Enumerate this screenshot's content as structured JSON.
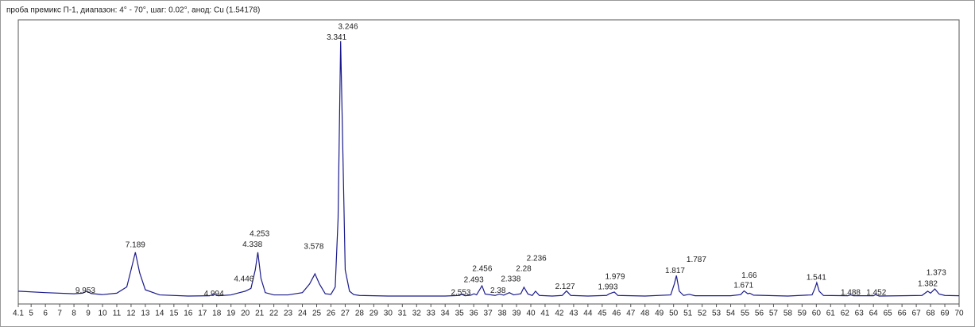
{
  "chart_data": {
    "type": "line",
    "title": "проба  премикс П-1, диапазон: 4° - 70°, шаг: 0.02°, анод: Cu (1.54178)",
    "color": "#1a1a8c",
    "xlim": [
      4.1,
      70
    ],
    "ylim": [
      0,
      1000
    ],
    "xticks": [
      4.1,
      5,
      6,
      7,
      8,
      9,
      10,
      11,
      12,
      13,
      14,
      15,
      16,
      17,
      18,
      19,
      20,
      21,
      22,
      23,
      24,
      25,
      26,
      27,
      28,
      29,
      30,
      31,
      32,
      33,
      34,
      35,
      36,
      37,
      38,
      39,
      40,
      41,
      42,
      43,
      44,
      45,
      46,
      47,
      48,
      49,
      50,
      51,
      52,
      53,
      54,
      55,
      56,
      57,
      58,
      59,
      60,
      61,
      62,
      63,
      64,
      65,
      66,
      67,
      68,
      69,
      70
    ],
    "x": [
      4.1,
      6,
      8,
      8.6,
      8.9,
      9.2,
      10,
      11,
      11.7,
      12.0,
      12.3,
      12.6,
      13,
      14,
      16,
      17.5,
      17.8,
      18.1,
      19,
      19.6,
      20,
      20.4,
      20.7,
      20.88,
      21.1,
      21.4,
      22,
      23,
      24,
      24.5,
      24.88,
      25.2,
      25.6,
      26,
      26.3,
      26.5,
      26.68,
      26.85,
      27.0,
      27.3,
      27.6,
      28,
      30,
      32,
      34,
      35,
      35.15,
      35.4,
      35.8,
      36.02,
      36.2,
      36.58,
      36.8,
      37.5,
      37.8,
      38.1,
      38.5,
      38.8,
      39.3,
      39.52,
      39.8,
      40.1,
      40.33,
      40.6,
      41.5,
      42.2,
      42.5,
      42.8,
      44,
      45.3,
      45.51,
      45.85,
      46.1,
      48,
      49.8,
      50.05,
      50.2,
      50.4,
      50.7,
      51.1,
      51.5,
      54,
      54.7,
      54.94,
      55.2,
      55.33,
      55.6,
      58,
      59.7,
      59.9,
      60.03,
      60.2,
      60.5,
      62.2,
      62.4,
      62.6,
      64.0,
      64.14,
      64.4,
      67.4,
      67.8,
      68.0,
      68.3,
      68.6,
      69,
      70
    ],
    "values": [
      45,
      40,
      36,
      38,
      45,
      37,
      33,
      38,
      60,
      120,
      182,
      110,
      50,
      32,
      28,
      29,
      35,
      29,
      32,
      40,
      45,
      55,
      120,
      182,
      90,
      40,
      32,
      32,
      40,
      70,
      106,
      70,
      36,
      34,
      60,
      300,
      925,
      500,
      120,
      45,
      33,
      30,
      28,
      28,
      28,
      30,
      34,
      29,
      31,
      36,
      32,
      64,
      35,
      30,
      35,
      31,
      40,
      32,
      36,
      59,
      35,
      30,
      45,
      30,
      28,
      30,
      46,
      30,
      28,
      30,
      36,
      42,
      30,
      28,
      32,
      70,
      100,
      45,
      30,
      34,
      29,
      29,
      33,
      46,
      36,
      38,
      31,
      28,
      32,
      55,
      75,
      45,
      30,
      29,
      32,
      29,
      29,
      33,
      28,
      30,
      45,
      38,
      53,
      35,
      30,
      29
    ],
    "annotations": [
      {
        "text": "9.953",
        "x": 8.8,
        "y": 47
      },
      {
        "text": "7.189",
        "x": 12.3,
        "y": 207
      },
      {
        "text": "4.994",
        "x": 17.8,
        "y": 36
      },
      {
        "text": "4.446",
        "x": 19.9,
        "y": 87
      },
      {
        "text": "4.338",
        "x": 20.5,
        "y": 209
      },
      {
        "text": "4.253",
        "x": 21.0,
        "y": 246
      },
      {
        "text": "3.578",
        "x": 24.8,
        "y": 201
      },
      {
        "text": "3.341",
        "x": 26.4,
        "y": 938
      },
      {
        "text": "3.246",
        "x": 27.2,
        "y": 975
      },
      {
        "text": "2.553",
        "x": 35.1,
        "y": 39
      },
      {
        "text": "2.493",
        "x": 36.0,
        "y": 84
      },
      {
        "text": "2.456",
        "x": 36.6,
        "y": 123
      },
      {
        "text": "2.38",
        "x": 37.7,
        "y": 47
      },
      {
        "text": "2.338",
        "x": 38.6,
        "y": 87
      },
      {
        "text": "2.28",
        "x": 39.5,
        "y": 123
      },
      {
        "text": "2.236",
        "x": 40.4,
        "y": 159
      },
      {
        "text": "2.127",
        "x": 42.4,
        "y": 61
      },
      {
        "text": "1.993",
        "x": 45.4,
        "y": 59
      },
      {
        "text": "1.979",
        "x": 45.9,
        "y": 95
      },
      {
        "text": "1.817",
        "x": 50.1,
        "y": 117
      },
      {
        "text": "1.787",
        "x": 51.6,
        "y": 156
      },
      {
        "text": "1.671",
        "x": 54.9,
        "y": 64
      },
      {
        "text": "1.66",
        "x": 55.3,
        "y": 100
      },
      {
        "text": "1.541",
        "x": 60.0,
        "y": 92
      },
      {
        "text": "1.488",
        "x": 62.4,
        "y": 39
      },
      {
        "text": "1.452",
        "x": 64.2,
        "y": 39
      },
      {
        "text": "1.382",
        "x": 67.8,
        "y": 70
      },
      {
        "text": "1.373",
        "x": 68.4,
        "y": 109
      }
    ]
  }
}
